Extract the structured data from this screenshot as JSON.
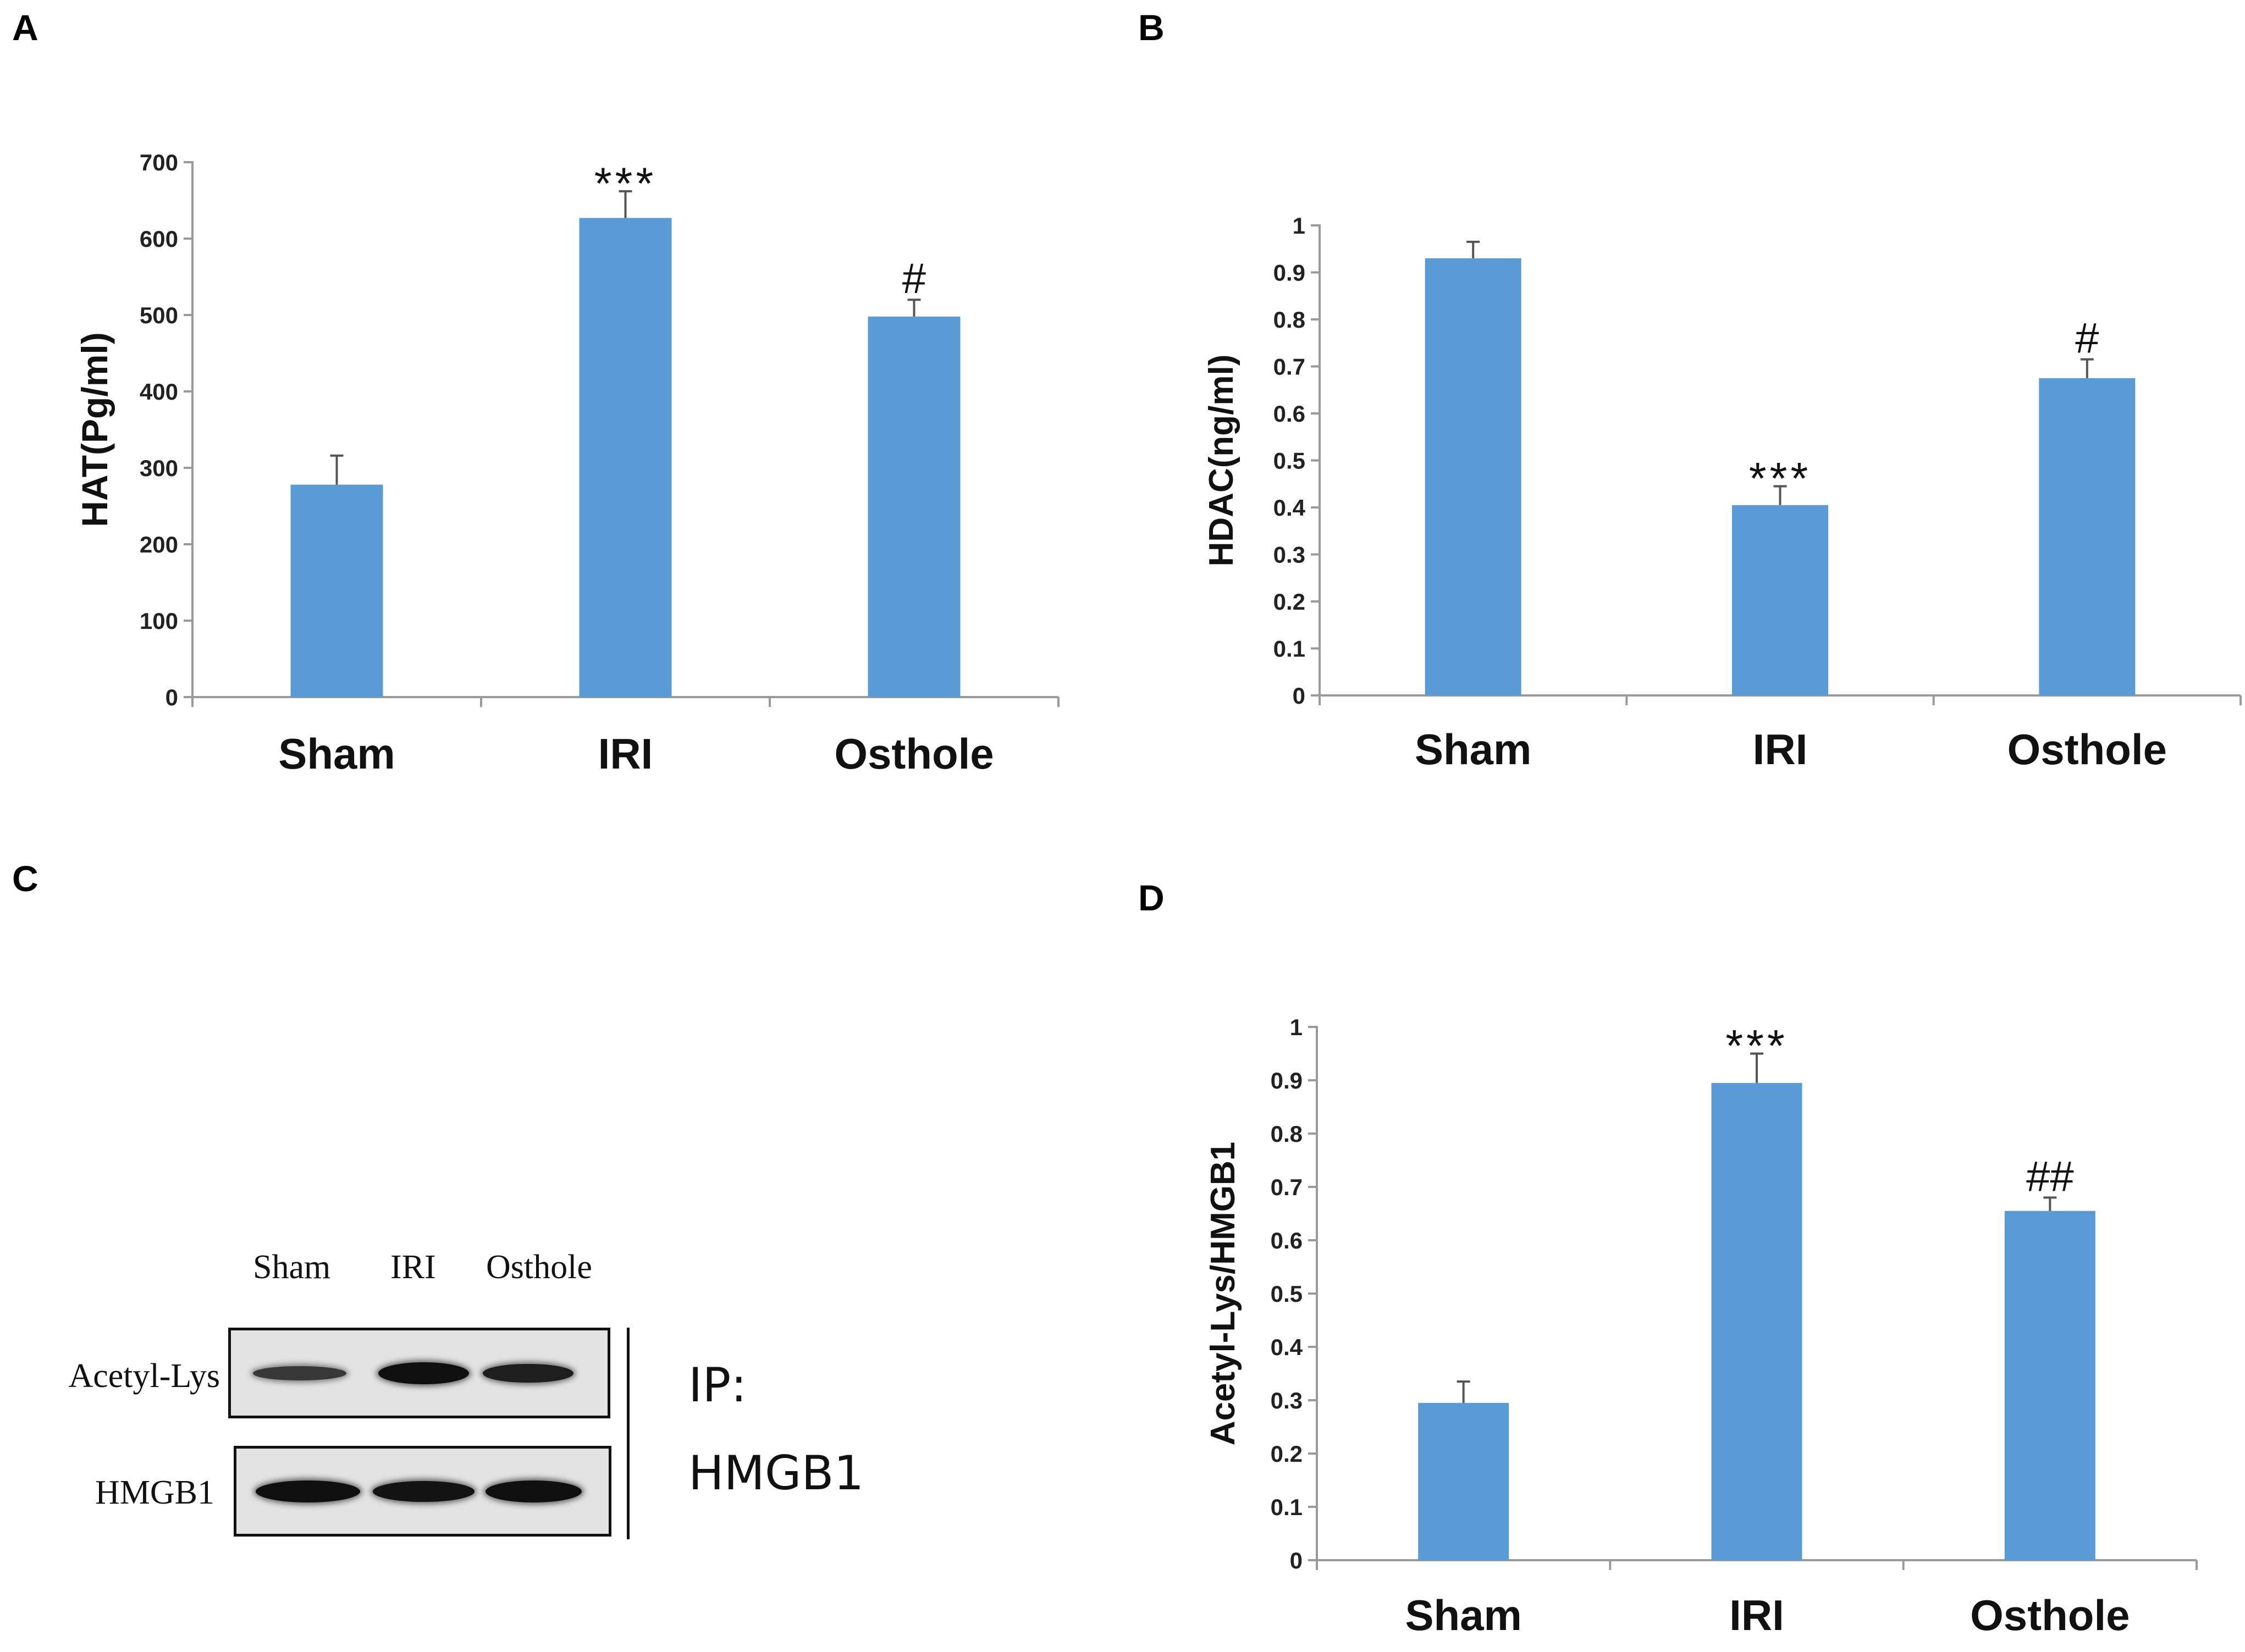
{
  "panels": [
    {
      "letter": "A"
    },
    {
      "letter": "B"
    },
    {
      "letter": "C"
    },
    {
      "letter": "D"
    }
  ],
  "chart_data": [
    {
      "panel": "A",
      "type": "bar",
      "categories": [
        "Sham",
        "IRI",
        "Osthole"
      ],
      "values": [
        278,
        627,
        498
      ],
      "errors": [
        38,
        35,
        22
      ],
      "annotations": [
        "",
        "***",
        "#"
      ],
      "ylabel": "HAT(Pg/ml)",
      "ylim": [
        0,
        700
      ],
      "yticks": [
        "0",
        "100",
        "200",
        "300",
        "400",
        "500",
        "600",
        "700"
      ],
      "color": "#5b9bd5",
      "grid": false
    },
    {
      "panel": "B",
      "type": "bar",
      "categories": [
        "Sham",
        "IRI",
        "Osthole"
      ],
      "values": [
        0.93,
        0.405,
        0.675
      ],
      "errors": [
        0.035,
        0.04,
        0.04
      ],
      "annotations": [
        "",
        "***",
        "#"
      ],
      "ylabel": "HDAC(ng/ml)",
      "ylim": [
        0,
        1
      ],
      "yticks": [
        "0",
        "0.1",
        "0.2",
        "0.3",
        "0.4",
        "0.5",
        "0.6",
        "0.7",
        "0.8",
        "0.9",
        "1"
      ],
      "color": "#5b9bd5",
      "grid": false
    },
    {
      "panel": "D",
      "type": "bar",
      "categories": [
        "Sham",
        "IRI",
        "Osthole"
      ],
      "values": [
        0.295,
        0.895,
        0.655
      ],
      "errors": [
        0.04,
        0.055,
        0.025
      ],
      "annotations": [
        "",
        "***",
        "##"
      ],
      "ylabel": "Acetyl-Lys/HMGB1",
      "ylim": [
        0,
        1
      ],
      "yticks": [
        "0",
        "0.1",
        "0.2",
        "0.3",
        "0.4",
        "0.5",
        "0.6",
        "0.7",
        "0.8",
        "0.9",
        "1"
      ],
      "color": "#5b9bd5",
      "grid": false
    }
  ],
  "blot": {
    "lanes": [
      "Sham",
      "IRI",
      "Osthole"
    ],
    "rows": [
      "Acetyl-Lys",
      "HMGB1"
    ],
    "ip_prefix": "IP:",
    "ip_target": "HMGB1",
    "band_intensity": [
      [
        0.45,
        1.0,
        0.8
      ],
      [
        1.0,
        0.95,
        1.0
      ]
    ]
  }
}
